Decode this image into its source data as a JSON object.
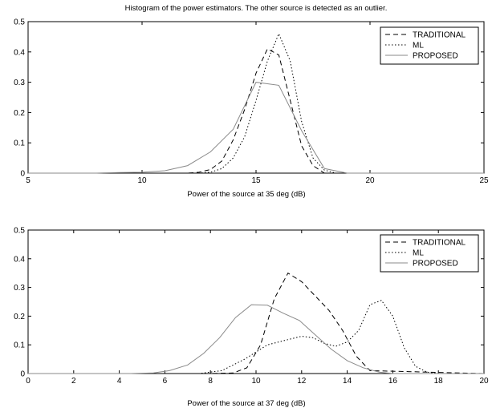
{
  "figure_title": "Histogram of the power estimators. The other source is detected as an outlier.",
  "colors": {
    "traditional": "#000000",
    "ml": "#000000",
    "proposed": "#8a8a8a"
  },
  "chart_data": [
    {
      "type": "line",
      "title": "Histogram of the power estimators. The other source is detected as an outlier.",
      "xlabel": "Power of the source at 35 deg (dB)",
      "ylabel": "",
      "xlim": [
        5,
        25
      ],
      "ylim": [
        0,
        0.5
      ],
      "xticks": [
        5,
        10,
        15,
        20,
        25
      ],
      "yticks": [
        0,
        0.1,
        0.2,
        0.3,
        0.4,
        0.5
      ],
      "ytick_labels": [
        "0",
        "0.1",
        "0.2",
        "0.3",
        "0.4",
        "0.5"
      ],
      "grid": false,
      "legend_position": "top-right",
      "series": [
        {
          "name": "TRADITIONAL",
          "style": "dashed",
          "x": [
            5,
            12,
            12.5,
            13,
            13.5,
            14,
            14.5,
            15,
            15.5,
            16,
            16.5,
            17,
            17.5,
            18,
            25
          ],
          "y": [
            0,
            0,
            0.003,
            0.012,
            0.04,
            0.11,
            0.21,
            0.33,
            0.41,
            0.39,
            0.24,
            0.09,
            0.025,
            0,
            0
          ]
        },
        {
          "name": "ML",
          "style": "dotted",
          "x": [
            5,
            12.5,
            13,
            13.5,
            14,
            14.5,
            15,
            15.5,
            16,
            16.5,
            17,
            17.5,
            18,
            18.5,
            25
          ],
          "y": [
            0,
            0,
            0.003,
            0.015,
            0.05,
            0.12,
            0.24,
            0.37,
            0.46,
            0.37,
            0.17,
            0.05,
            0.01,
            0,
            0
          ]
        },
        {
          "name": "PROPOSED",
          "style": "solid",
          "x": [
            5,
            8,
            9,
            10,
            11,
            12,
            13,
            14,
            15,
            16,
            17,
            18,
            19,
            25
          ],
          "y": [
            0,
            0,
            0.002,
            0.003,
            0.008,
            0.025,
            0.07,
            0.145,
            0.3,
            0.29,
            0.14,
            0.015,
            0,
            0
          ]
        }
      ]
    },
    {
      "type": "line",
      "title": "",
      "xlabel": "Power of the source at 37 deg (dB)",
      "ylabel": "",
      "xlim": [
        0,
        20
      ],
      "ylim": [
        0,
        0.5
      ],
      "xticks": [
        0,
        2,
        4,
        6,
        8,
        10,
        12,
        14,
        16,
        18,
        20
      ],
      "yticks": [
        0,
        0.1,
        0.2,
        0.3,
        0.4,
        0.5
      ],
      "ytick_labels": [
        "0",
        "0.1",
        "0.2",
        "0.3",
        "0.4",
        "0.5"
      ],
      "grid": false,
      "legend_position": "top-right",
      "series": [
        {
          "name": "TRADITIONAL",
          "style": "dashed",
          "x": [
            0,
            8,
            9,
            9.6,
            10.2,
            10.8,
            11.4,
            12,
            12.6,
            13.2,
            13.8,
            14.4,
            15,
            20
          ],
          "y": [
            0,
            0,
            0.002,
            0.02,
            0.1,
            0.26,
            0.35,
            0.32,
            0.27,
            0.22,
            0.15,
            0.06,
            0.01,
            0
          ]
        },
        {
          "name": "ML",
          "style": "dotted",
          "x": [
            0,
            7.5,
            8.5,
            9.5,
            10.5,
            11.5,
            12,
            12.5,
            13,
            13.5,
            14,
            14.5,
            15,
            15.5,
            16,
            16.5,
            17,
            17.5,
            18,
            20
          ],
          "y": [
            0,
            0,
            0.01,
            0.05,
            0.1,
            0.12,
            0.13,
            0.125,
            0.105,
            0.095,
            0.11,
            0.15,
            0.24,
            0.255,
            0.2,
            0.09,
            0.025,
            0.005,
            0,
            0
          ]
        },
        {
          "name": "PROPOSED",
          "style": "solid",
          "x": [
            0,
            4.5,
            5.5,
            6.2,
            7,
            7.7,
            8.4,
            9.1,
            9.8,
            10.5,
            11.2,
            11.9,
            12.6,
            13.3,
            14,
            14.7,
            15.4,
            16,
            20
          ],
          "y": [
            0,
            0,
            0.002,
            0.01,
            0.03,
            0.07,
            0.125,
            0.195,
            0.24,
            0.238,
            0.21,
            0.185,
            0.135,
            0.085,
            0.045,
            0.02,
            0.005,
            0,
            0
          ]
        }
      ]
    }
  ]
}
